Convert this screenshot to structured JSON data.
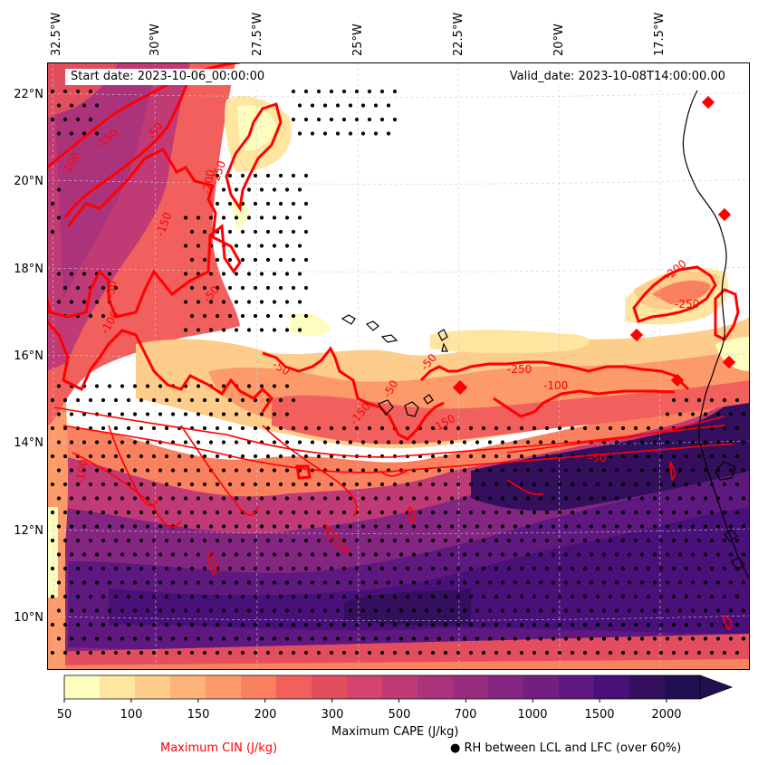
{
  "header": {
    "start_date": "Start date: 2023-10-06_00:00:00",
    "valid_date": "Valid_date: 2023-10-08T14:00:00.00"
  },
  "longitude_labels": [
    "32.5°W",
    "30°W",
    "27.5°W",
    "25°W",
    "22.5°W",
    "20°W",
    "17.5°W"
  ],
  "latitude_labels": [
    "22°N",
    "20°N",
    "18°N",
    "16°N",
    "14°N",
    "12°N",
    "10°N"
  ],
  "colorbar": {
    "title": "Maximum CAPE (J/kg)",
    "ticks": [
      "50",
      "100",
      "150",
      "200",
      "300",
      "500",
      "700",
      "1000",
      "1500",
      "2000"
    ],
    "colors": [
      "#fcfdbf",
      "#fee5a0",
      "#fecc8b",
      "#feb379",
      "#fd9a6a",
      "#fa815f",
      "#f1605d",
      "#e34e5f",
      "#d3436e",
      "#c03a76",
      "#ab337c",
      "#982d80",
      "#842681",
      "#721f81",
      "#5f187f",
      "#4a1079",
      "#330f5e",
      "#221150"
    ]
  },
  "legend": {
    "cin_label": "Maximum CIN (J/kg)",
    "cin_color": "#ff0000",
    "rh_label": "● RH between LCL and LFC (over 60%)"
  },
  "contour_labels": [
    "-150",
    "-50",
    "-100",
    "-250",
    "-200",
    "-50",
    "-150",
    "-100",
    "-50",
    "-250",
    "-150",
    "-50",
    "-200",
    "-50",
    "-150",
    "-100",
    "-50",
    "-250",
    "-50",
    "-100"
  ]
}
